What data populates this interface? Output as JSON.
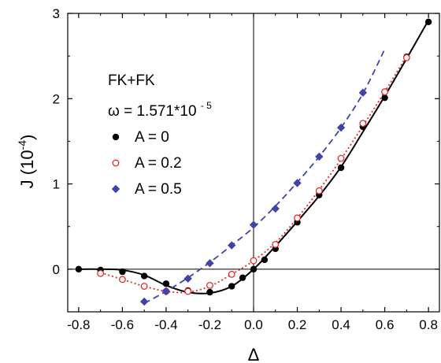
{
  "chart_data": {
    "type": "scatter",
    "title": "",
    "xlabel": "Δ",
    "ylabel": "J (10",
    "ylabel_exp": "-4",
    "ylabel_close": ")",
    "xlim": [
      -0.85,
      0.85
    ],
    "ylim": [
      -0.5,
      3.0
    ],
    "xticks": [
      -0.8,
      -0.6,
      -0.4,
      -0.2,
      0.0,
      0.2,
      0.4,
      0.6,
      0.8
    ],
    "xtick_labels": [
      "-0.8",
      "-0.6",
      "-0.4",
      "-0.2",
      "0.0",
      "0.2",
      "0.4",
      "0.6",
      "0.8"
    ],
    "yticks": [
      0,
      1,
      2,
      3
    ],
    "ytick_labels": [
      "0",
      "1",
      "2",
      "3"
    ],
    "annotation_line1": "FK+FK",
    "annotation_omega": "ω = 1.571*10",
    "annotation_omega_exp": "- 5",
    "legend_placement": "left",
    "series": [
      {
        "name": "A = 0",
        "marker": "filled-circle",
        "line": "solid",
        "color": "#000000",
        "x": [
          -0.8,
          -0.7,
          -0.6,
          -0.5,
          -0.4,
          -0.3,
          -0.2,
          -0.1,
          -0.05,
          0.0,
          0.05,
          0.1,
          0.2,
          0.3,
          0.4,
          0.5,
          0.6,
          0.7,
          0.8
        ],
        "y": [
          0.0,
          -0.01,
          -0.03,
          -0.08,
          -0.17,
          -0.25,
          -0.27,
          -0.2,
          -0.1,
          0.0,
          0.11,
          0.24,
          0.55,
          0.87,
          1.19,
          1.67,
          2.01,
          2.49,
          2.9
        ],
        "curve_x": [
          -0.8,
          -0.7,
          -0.6,
          -0.5,
          -0.4,
          -0.3,
          -0.2,
          -0.1,
          0.0,
          0.1,
          0.2,
          0.3,
          0.4,
          0.5,
          0.6,
          0.7,
          0.8
        ],
        "curve_y": [
          0.0,
          0.0,
          -0.01,
          -0.07,
          -0.19,
          -0.27,
          -0.28,
          -0.2,
          0.0,
          0.27,
          0.56,
          0.86,
          1.2,
          1.61,
          2.03,
          2.47,
          2.92
        ]
      },
      {
        "name": "A = 0.2",
        "marker": "open-circle",
        "line": "dotted",
        "color": "#e8262a",
        "x": [
          -0.7,
          -0.6,
          -0.5,
          -0.4,
          -0.3,
          -0.2,
          -0.1,
          0.0,
          0.1,
          0.2,
          0.3,
          0.4,
          0.5,
          0.6,
          0.7
        ],
        "y": [
          -0.05,
          -0.12,
          -0.2,
          -0.26,
          -0.26,
          -0.19,
          -0.06,
          0.1,
          0.29,
          0.6,
          0.92,
          1.3,
          1.71,
          2.08,
          2.48
        ],
        "curve_x": [
          -0.7,
          -0.6,
          -0.5,
          -0.4,
          -0.3,
          -0.2,
          -0.1,
          0.0,
          0.1,
          0.2,
          0.3,
          0.4,
          0.5,
          0.6,
          0.7
        ],
        "curve_y": [
          -0.04,
          -0.12,
          -0.2,
          -0.26,
          -0.27,
          -0.2,
          -0.06,
          0.1,
          0.31,
          0.6,
          0.93,
          1.29,
          1.68,
          2.08,
          2.5
        ]
      },
      {
        "name": "A = 0.5",
        "marker": "filled-diamond",
        "line": "dashed",
        "color": "#3f44a6",
        "x": [
          -0.5,
          -0.4,
          -0.3,
          -0.2,
          -0.1,
          0.0,
          0.1,
          0.2,
          0.3,
          0.4,
          0.5
        ],
        "y": [
          -0.38,
          -0.26,
          -0.11,
          0.07,
          0.28,
          0.52,
          0.71,
          1.01,
          1.32,
          1.66,
          2.07
        ],
        "curve_x": [
          -0.5,
          -0.4,
          -0.3,
          -0.2,
          -0.1,
          0.0,
          0.1,
          0.2,
          0.3,
          0.4,
          0.5,
          0.6
        ],
        "curve_y": [
          -0.4,
          -0.26,
          -0.1,
          0.08,
          0.28,
          0.49,
          0.74,
          1.02,
          1.32,
          1.66,
          2.06,
          2.58
        ]
      }
    ]
  }
}
